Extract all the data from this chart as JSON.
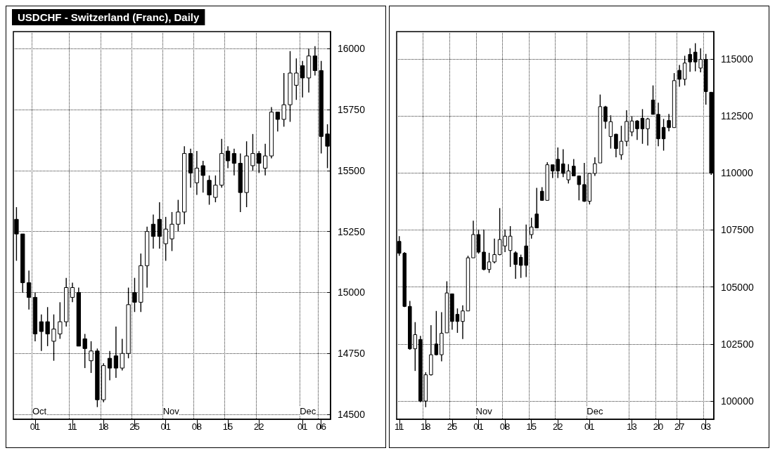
{
  "chart_data": [
    {
      "type": "candlestick",
      "title": "USDCHF - Switzerland (Franc), Daily",
      "categories": [
        null,
        null,
        null,
        "01",
        null,
        null,
        null,
        null,
        null,
        "11",
        null,
        null,
        null,
        null,
        "18",
        null,
        null,
        null,
        null,
        "25",
        null,
        null,
        null,
        null,
        "01",
        null,
        null,
        null,
        null,
        "08",
        null,
        null,
        null,
        null,
        "15",
        null,
        null,
        null,
        null,
        "22",
        null,
        null,
        null,
        null,
        null,
        null,
        "01",
        null,
        null,
        "06",
        null
      ],
      "ohlc": [
        [
          15300,
          15350,
          15130,
          15240
        ],
        [
          15240,
          15240,
          15000,
          15040
        ],
        [
          15040,
          15090,
          14930,
          14980
        ],
        [
          14980,
          15000,
          14800,
          14830
        ],
        [
          14880,
          14910,
          14760,
          14840
        ],
        [
          14880,
          14940,
          14780,
          14830
        ],
        [
          14800,
          14910,
          14720,
          14850
        ],
        [
          14830,
          14960,
          14810,
          14880
        ],
        [
          14880,
          15060,
          14860,
          15020
        ],
        [
          14980,
          15040,
          14960,
          15020
        ],
        [
          15000,
          15020,
          14780,
          14780
        ],
        [
          14810,
          14830,
          14690,
          14770
        ],
        [
          14720,
          14800,
          14670,
          14760
        ],
        [
          14760,
          14770,
          14530,
          14560
        ],
        [
          14560,
          14710,
          14550,
          14700
        ],
        [
          14730,
          14760,
          14640,
          14690
        ],
        [
          14740,
          14860,
          14650,
          14690
        ],
        [
          14690,
          14810,
          14680,
          14750
        ],
        [
          14750,
          15020,
          14730,
          14950
        ],
        [
          15000,
          15060,
          14920,
          14960
        ],
        [
          14960,
          15160,
          14920,
          15110
        ],
        [
          15110,
          15270,
          15020,
          15250
        ],
        [
          15280,
          15320,
          15180,
          15230
        ],
        [
          15300,
          15370,
          15180,
          15230
        ],
        [
          15200,
          15310,
          15130,
          15260
        ],
        [
          15220,
          15330,
          15170,
          15280
        ],
        [
          15280,
          15380,
          15250,
          15330
        ],
        [
          15330,
          15600,
          15280,
          15570
        ],
        [
          15570,
          15590,
          15430,
          15490
        ],
        [
          15450,
          15580,
          15400,
          15510
        ],
        [
          15520,
          15540,
          15410,
          15480
        ],
        [
          15460,
          15480,
          15360,
          15400
        ],
        [
          15390,
          15480,
          15370,
          15440
        ],
        [
          15440,
          15630,
          15430,
          15570
        ],
        [
          15580,
          15600,
          15510,
          15540
        ],
        [
          15570,
          15590,
          15480,
          15530
        ],
        [
          15530,
          15570,
          15330,
          15410
        ],
        [
          15410,
          15620,
          15350,
          15560
        ],
        [
          15520,
          15650,
          15500,
          15570
        ],
        [
          15570,
          15580,
          15490,
          15530
        ],
        [
          15510,
          15610,
          15480,
          15560
        ],
        [
          15560,
          15760,
          15550,
          15740
        ],
        [
          15740,
          15740,
          15660,
          15710
        ],
        [
          15710,
          15900,
          15680,
          15770
        ],
        [
          15770,
          15990,
          15700,
          15900
        ],
        [
          15850,
          15960,
          15790,
          15900
        ],
        [
          15930,
          15950,
          15800,
          15880
        ],
        [
          15880,
          16000,
          15820,
          15970
        ],
        [
          15970,
          16010,
          15890,
          15910
        ],
        [
          15910,
          15950,
          15570,
          15640
        ],
        [
          15650,
          15690,
          15510,
          15600
        ]
      ],
      "color": "#000000",
      "ylim": [
        14480,
        16070
      ],
      "yticks": [
        14500,
        14750,
        15000,
        15250,
        15500,
        15750,
        16000
      ],
      "grid": true,
      "line_style": "dotted",
      "annotations": [
        "Oct",
        "Nov",
        "Dec"
      ]
    },
    {
      "type": "candlestick",
      "categories": [
        "11",
        null,
        null,
        null,
        null,
        "18",
        null,
        null,
        null,
        null,
        "25",
        null,
        null,
        null,
        null,
        "01",
        null,
        null,
        null,
        null,
        "08",
        null,
        null,
        null,
        null,
        "15",
        null,
        null,
        null,
        null,
        "22",
        null,
        null,
        null,
        null,
        null,
        "01",
        null,
        null,
        null,
        null,
        null,
        null,
        null,
        "13",
        null,
        null,
        null,
        null,
        "20",
        null,
        null,
        null,
        "27",
        null,
        null,
        null,
        null,
        "03",
        null
      ],
      "ohlc": [
        [
          107000,
          107230,
          106370,
          106480
        ],
        [
          106480,
          106530,
          104120,
          104150
        ],
        [
          104150,
          104390,
          102250,
          102290
        ],
        [
          102290,
          103460,
          101320,
          102910
        ],
        [
          102700,
          102860,
          99950,
          100000
        ],
        [
          100000,
          101260,
          99730,
          101150
        ],
        [
          101150,
          103330,
          101120,
          102030
        ],
        [
          102500,
          103950,
          102000,
          102030
        ],
        [
          102030,
          103900,
          101740,
          102970
        ],
        [
          102990,
          105250,
          102990,
          104740
        ],
        [
          104700,
          104700,
          103130,
          103490
        ],
        [
          103800,
          104060,
          102990,
          103490
        ],
        [
          103490,
          104200,
          102720,
          103950
        ],
        [
          103950,
          106370,
          103950,
          106280
        ],
        [
          106280,
          107910,
          106280,
          107300
        ],
        [
          107300,
          107520,
          106460,
          106530
        ],
        [
          106530,
          107520,
          105730,
          105770
        ],
        [
          105770,
          106500,
          105620,
          106100
        ],
        [
          106100,
          107120,
          106040,
          106420
        ],
        [
          106420,
          108460,
          106390,
          107080
        ],
        [
          106800,
          107520,
          106530,
          107230
        ],
        [
          106600,
          107670,
          105880,
          107230
        ],
        [
          106500,
          106570,
          105360,
          105990
        ],
        [
          106300,
          106420,
          105400,
          105950
        ],
        [
          106800,
          107740,
          105440,
          105950
        ],
        [
          107300,
          108040,
          107120,
          107630
        ],
        [
          108200,
          109350,
          107590,
          107590
        ],
        [
          109200,
          109380,
          108800,
          108800
        ],
        [
          108800,
          110470,
          108800,
          110360
        ],
        [
          110360,
          110360,
          109780,
          110090
        ],
        [
          110600,
          111120,
          109780,
          110090
        ],
        [
          110400,
          111040,
          109820,
          109980
        ],
        [
          109700,
          110390,
          109540,
          110090
        ],
        [
          110300,
          110610,
          109870,
          109870
        ],
        [
          109870,
          109890,
          108800,
          109490
        ],
        [
          109490,
          110440,
          108730,
          108760
        ],
        [
          108760,
          110000,
          108620,
          109980
        ],
        [
          109980,
          110690,
          109870,
          110410
        ],
        [
          110440,
          113440,
          110440,
          112910
        ],
        [
          112900,
          112940,
          111940,
          112260
        ],
        [
          111600,
          112530,
          111070,
          112250
        ],
        [
          111700,
          111720,
          110690,
          111070
        ],
        [
          110800,
          112070,
          110580,
          111390
        ],
        [
          111390,
          112750,
          111170,
          112260
        ],
        [
          111800,
          112500,
          111610,
          112280
        ],
        [
          112280,
          112320,
          111450,
          111940
        ],
        [
          112400,
          112800,
          111280,
          111940
        ],
        [
          111940,
          112420,
          111200,
          112370
        ],
        [
          113200,
          113840,
          112570,
          112570
        ],
        [
          112570,
          113080,
          111170,
          111500
        ],
        [
          112000,
          112370,
          110980,
          111500
        ],
        [
          112300,
          112590,
          111830,
          111990
        ],
        [
          111990,
          114380,
          111990,
          114050
        ],
        [
          114500,
          114740,
          113780,
          114110
        ],
        [
          114110,
          115140,
          113840,
          114820
        ],
        [
          115200,
          115470,
          114440,
          114870
        ],
        [
          115300,
          115690,
          114460,
          114870
        ],
        [
          114600,
          115470,
          114410,
          114980
        ],
        [
          114980,
          115220,
          113000,
          113570
        ],
        [
          113540,
          113540,
          109920,
          110000
        ]
      ],
      "color": "#000000",
      "ylim": [
        99200,
        116200
      ],
      "yticks": [
        100000,
        102500,
        105000,
        107500,
        110000,
        112500,
        115000
      ],
      "grid": true,
      "line_style": "dotted",
      "annotations": [
        "Nov",
        "Dec"
      ]
    }
  ]
}
